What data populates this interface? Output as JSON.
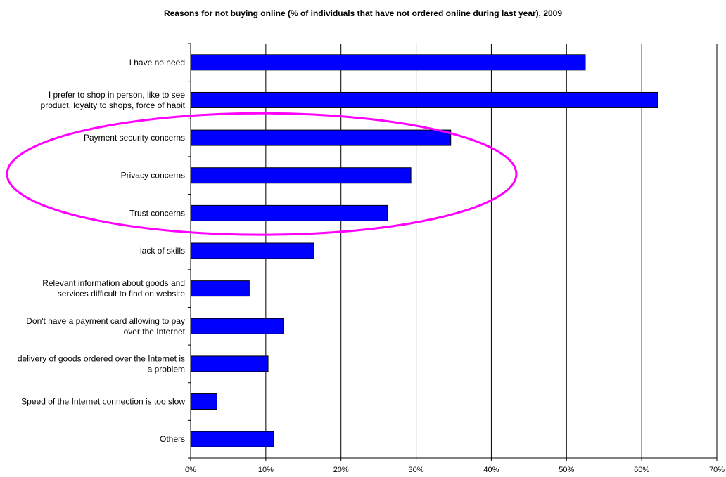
{
  "chart_data": {
    "type": "bar",
    "orientation": "horizontal",
    "title": "Reasons for not buying online (% of individuals that have not ordered online during last year), 2009",
    "categories": [
      [
        "I have no need"
      ],
      [
        "I prefer to shop in person, like to see",
        "product, loyalty to shops, force of habit"
      ],
      [
        "Payment security concerns"
      ],
      [
        "Privacy concerns"
      ],
      [
        "Trust concerns"
      ],
      [
        "lack of skills"
      ],
      [
        "Relevant information about goods and",
        "services difficult to find on website"
      ],
      [
        "Don't have a payment card allowing to pay",
        "over the Internet"
      ],
      [
        "delivery of goods ordered over the Internet is",
        "a problem"
      ],
      [
        "Speed of the Internet connection is too slow"
      ],
      [
        "Others"
      ]
    ],
    "values": [
      52.5,
      62.1,
      34.6,
      29.3,
      26.2,
      16.4,
      7.8,
      12.3,
      10.3,
      3.5,
      11.0
    ],
    "xlim": [
      0,
      70
    ],
    "xticks": [
      0,
      10,
      20,
      30,
      40,
      50,
      60,
      70
    ],
    "tick_suffix": "%",
    "grid": true,
    "legend": "none",
    "highlight": {
      "categories": [
        "Payment security concerns",
        "Privacy concerns",
        "Trust concerns"
      ],
      "shape": "ellipse",
      "color": "#ff00ff"
    },
    "colors": {
      "bar_fill": "#0000ff",
      "bar_stroke": "#000000",
      "grid": "#000000"
    }
  }
}
